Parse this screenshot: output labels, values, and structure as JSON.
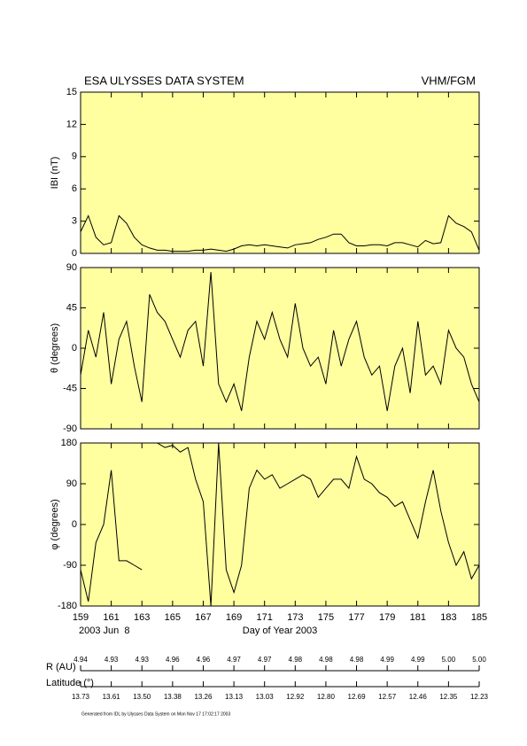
{
  "header": {
    "title": "ESA ULYSSES DATA SYSTEM",
    "instrument": "VHM/FGM"
  },
  "chart_data": [
    {
      "type": "line",
      "ylabel": "IBI (nT)",
      "color": "#000000",
      "xlim": [
        159,
        185
      ],
      "xticks": [
        159,
        161,
        163,
        165,
        167,
        169,
        171,
        173,
        175,
        177,
        179,
        181,
        183,
        185
      ],
      "ylim": [
        0,
        15
      ],
      "yticks": [
        0,
        3,
        6,
        9,
        12,
        15
      ],
      "x": [
        159,
        159.5,
        160,
        160.5,
        161,
        161.5,
        162,
        162.5,
        163,
        163.5,
        164,
        164.5,
        165,
        165.5,
        166,
        166.5,
        167,
        167.5,
        168,
        168.5,
        169,
        169.5,
        170,
        170.5,
        171,
        171.5,
        172,
        172.5,
        173,
        173.5,
        174,
        174.5,
        175,
        175.5,
        176,
        176.5,
        177,
        177.5,
        178,
        178.5,
        179,
        179.5,
        180,
        180.5,
        181,
        181.5,
        182,
        182.5,
        183,
        183.5,
        184,
        184.5,
        185
      ],
      "values": [
        2,
        3.5,
        1.5,
        0.8,
        1.0,
        3.5,
        2.8,
        1.5,
        0.8,
        0.5,
        0.3,
        0.3,
        0.2,
        0.2,
        0.2,
        0.3,
        0.3,
        0.4,
        0.3,
        0.2,
        0.4,
        0.7,
        0.8,
        0.7,
        0.8,
        0.7,
        0.6,
        0.5,
        0.8,
        0.9,
        1.0,
        1.3,
        1.5,
        1.8,
        1.8,
        1.0,
        0.7,
        0.7,
        0.8,
        0.8,
        0.7,
        1.0,
        1.0,
        0.8,
        0.6,
        1.2,
        0.9,
        1.0,
        3.5,
        2.8,
        2.5,
        2.0,
        0.3
      ]
    },
    {
      "type": "line",
      "ylabel": "θ (degrees)",
      "color": "#000000",
      "xlim": [
        159,
        185
      ],
      "xticks": [
        159,
        161,
        163,
        165,
        167,
        169,
        171,
        173,
        175,
        177,
        179,
        181,
        183,
        185
      ],
      "ylim": [
        -90,
        90
      ],
      "yticks": [
        -90,
        -45,
        0,
        45,
        90
      ],
      "x": [
        159,
        159.5,
        160,
        160.5,
        161,
        161.5,
        162,
        162.5,
        163,
        163.5,
        164,
        164.5,
        165,
        165.5,
        166,
        166.5,
        167,
        167.5,
        168,
        168.5,
        169,
        169.5,
        170,
        170.5,
        171,
        171.5,
        172,
        172.5,
        173,
        173.5,
        174,
        174.5,
        175,
        175.5,
        176,
        176.5,
        177,
        177.5,
        178,
        178.5,
        179,
        179.5,
        180,
        180.5,
        181,
        181.5,
        182,
        182.5,
        183,
        183.5,
        184,
        184.5,
        185
      ],
      "values": [
        -30,
        20,
        -10,
        40,
        -40,
        10,
        30,
        -20,
        -60,
        60,
        40,
        30,
        10,
        -10,
        20,
        30,
        -20,
        85,
        -40,
        -60,
        -40,
        -70,
        -10,
        30,
        10,
        40,
        10,
        -10,
        50,
        0,
        -20,
        -10,
        -40,
        20,
        -20,
        10,
        30,
        -10,
        -30,
        -20,
        -70,
        -20,
        0,
        -50,
        30,
        -30,
        -20,
        -40,
        20,
        0,
        -10,
        -40,
        -60
      ]
    },
    {
      "type": "line",
      "ylabel": "φ (degrees)",
      "color": "#000000",
      "xlim": [
        159,
        185
      ],
      "xticks": [
        159,
        161,
        163,
        165,
        167,
        169,
        171,
        173,
        175,
        177,
        179,
        181,
        183,
        185
      ],
      "xlabel": "Day of Year 2003",
      "date_label": "2003 Jun  8",
      "ylim": [
        -180,
        180
      ],
      "yticks": [
        -180,
        -90,
        0,
        90,
        180
      ],
      "x": [
        159,
        159.5,
        160,
        160.5,
        161,
        161.5,
        162,
        162.5,
        163,
        163.5,
        164,
        164.5,
        165,
        165.5,
        166,
        166.5,
        167,
        167.5,
        168,
        168.5,
        169,
        169.5,
        170,
        170.5,
        171,
        171.5,
        172,
        172.5,
        173,
        173.5,
        174,
        174.5,
        175,
        175.5,
        176,
        176.5,
        177,
        177.5,
        178,
        178.5,
        179,
        179.5,
        180,
        180.5,
        181,
        181.5,
        182,
        182.5,
        183,
        183.5,
        184,
        184.5,
        185
      ],
      "values": [
        -100,
        -170,
        -40,
        0,
        120,
        -80,
        -80,
        -90,
        -100,
        null,
        180,
        170,
        175,
        160,
        170,
        100,
        50,
        -180,
        180,
        -100,
        -150,
        -90,
        80,
        120,
        100,
        110,
        80,
        90,
        100,
        110,
        100,
        60,
        80,
        100,
        100,
        80,
        150,
        100,
        90,
        70,
        60,
        40,
        50,
        10,
        -30,
        50,
        120,
        30,
        -40,
        -90,
        -60,
        -120,
        -90
      ]
    }
  ],
  "ephemeris": [
    {
      "label": "R (AU)",
      "values": [
        "4.94",
        "4.93",
        "4.93",
        "4.96",
        "4.96",
        "4.97",
        "4.97",
        "4.98",
        "4.98",
        "4.98",
        "4.99",
        "4.99",
        "5.00",
        "5.00"
      ]
    },
    {
      "label": "Latitude (°)",
      "values": [
        "13.73",
        "13.61",
        "13.50",
        "13.38",
        "13.26",
        "13.13",
        "13.03",
        "12.92",
        "12.80",
        "12.69",
        "12.57",
        "12.46",
        "12.35",
        "12.23"
      ]
    }
  ],
  "footer": "Generated from IDL by Ulysses Data System on Mon Nov 17 17:02:17 2003"
}
